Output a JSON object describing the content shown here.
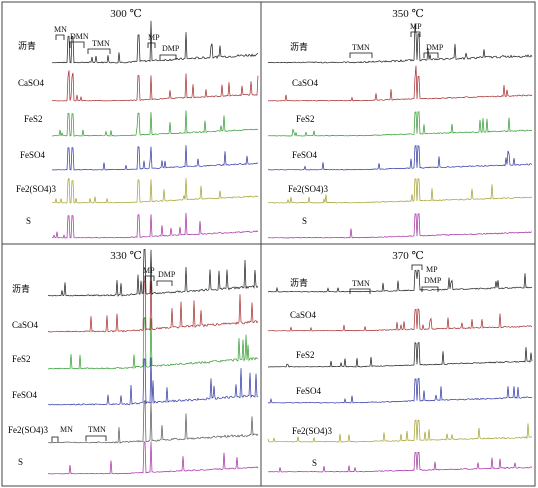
{
  "chart_data": [
    {
      "type": "line",
      "title": "300 ℃",
      "series": [
        {
          "name": "沥青",
          "color": "#1a1a1a",
          "profile": [
            2,
            7,
            12
          ]
        },
        {
          "name": "CaSO4",
          "color": "#a3282a",
          "profile": [
            1,
            6,
            11
          ]
        },
        {
          "name": "FeS2",
          "color": "#2e9a2e",
          "profile": [
            1,
            6,
            10
          ]
        },
        {
          "name": "FeSO4",
          "color": "#2b33a3",
          "profile": [
            1,
            6,
            10
          ]
        },
        {
          "name": "Fe2(SO4)3",
          "color": "#a3a02a",
          "profile": [
            1,
            6,
            10
          ]
        },
        {
          "name": "S",
          "color": "#a22aa3",
          "profile": [
            1,
            6,
            10
          ]
        }
      ],
      "annotations": [
        "MN",
        "DMN",
        "TMN",
        "MP",
        "DMP"
      ]
    },
    {
      "type": "line",
      "title": "350 ℃",
      "series": [
        {
          "name": "沥青",
          "color": "#1a1a1a",
          "profile": [
            2,
            6,
            12
          ]
        },
        {
          "name": "CaSO4",
          "color": "#a3282a",
          "profile": [
            1,
            5,
            10
          ]
        },
        {
          "name": "FeS2",
          "color": "#2e9a2e",
          "profile": [
            1,
            5,
            10
          ]
        },
        {
          "name": "FeSO4",
          "color": "#2b33a3",
          "profile": [
            1,
            5,
            10
          ]
        },
        {
          "name": "Fe2(SO4)3",
          "color": "#a3a02a",
          "profile": [
            1,
            5,
            10
          ]
        },
        {
          "name": "S",
          "color": "#a22aa3",
          "profile": [
            1,
            5,
            10
          ]
        }
      ],
      "annotations": [
        "MP",
        "TMN",
        "DMP"
      ]
    },
    {
      "type": "line",
      "title": "330 ℃",
      "series": [
        {
          "name": "沥青",
          "color": "#1a1a1a",
          "profile": [
            2,
            8,
            20
          ]
        },
        {
          "name": "CaSO4",
          "color": "#a3282a",
          "profile": [
            2,
            9,
            22
          ]
        },
        {
          "name": "FeS2",
          "color": "#2e9a2e",
          "profile": [
            2,
            9,
            22
          ]
        },
        {
          "name": "FeSO4",
          "color": "#2b33a3",
          "profile": [
            2,
            8,
            20
          ]
        },
        {
          "name": "Fe2(SO4)3",
          "color": "#555555",
          "profile": [
            2,
            7,
            18
          ]
        },
        {
          "name": "S",
          "color": "#a22aa3",
          "profile": [
            1,
            6,
            14
          ]
        }
      ],
      "annotations": [
        "MP",
        "DMP",
        "MN",
        "TMN"
      ]
    },
    {
      "type": "line",
      "title": "370 ℃",
      "series": [
        {
          "name": "沥青",
          "color": "#1a1a1a",
          "profile": [
            1,
            4,
            9
          ]
        },
        {
          "name": "CaSO4",
          "color": "#a3282a",
          "profile": [
            1,
            4,
            9
          ]
        },
        {
          "name": "FeS2",
          "color": "#1a1a1a",
          "profile": [
            1,
            5,
            10
          ]
        },
        {
          "name": "FeSO4",
          "color": "#2b33a3",
          "profile": [
            1,
            5,
            10
          ]
        },
        {
          "name": "Fe2(SO4)3",
          "color": "#a3a02a",
          "profile": [
            1,
            4,
            9
          ]
        },
        {
          "name": "S",
          "color": "#a22aa3",
          "profile": [
            1,
            4,
            8
          ]
        }
      ],
      "annotations": [
        "MP",
        "DMP",
        "TMN"
      ]
    }
  ]
}
